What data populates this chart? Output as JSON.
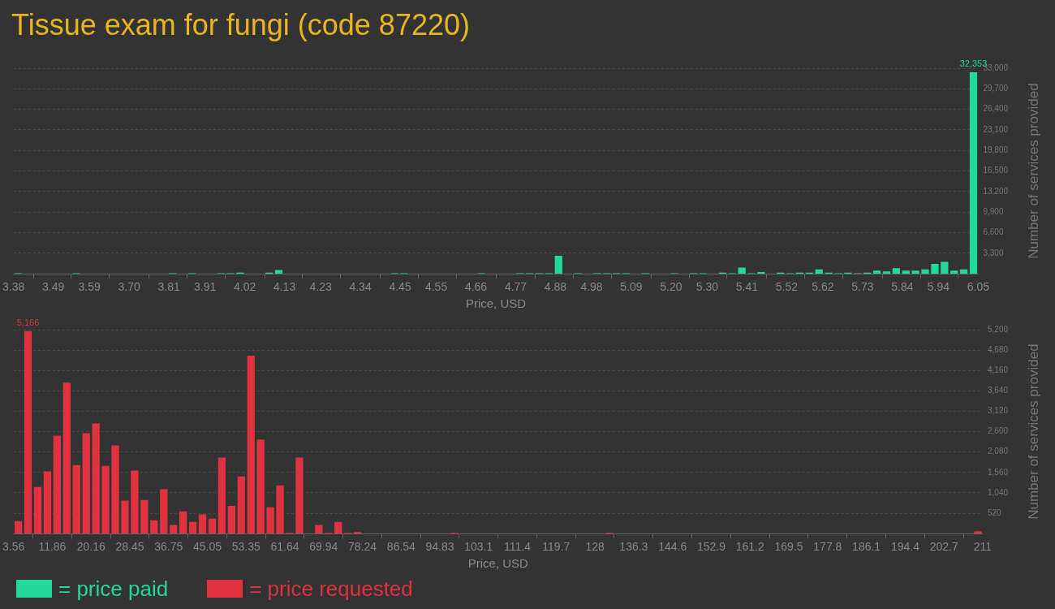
{
  "chart_data": [
    {
      "type": "histogram",
      "title": "Tissue exam for fungi (code 87220)",
      "xlabel": "Price, USD",
      "ylabel": "Number of services provided",
      "grid": "y",
      "legend": "bottom left",
      "bins": [
        3.38,
        3.4067,
        3.4334,
        3.4601,
        3.4868,
        3.5135,
        3.5402,
        3.5669,
        3.5936,
        3.6203,
        3.647,
        3.6737,
        3.7004,
        3.7271,
        3.7538,
        3.7805,
        3.8072,
        3.8339,
        3.8606,
        3.8873,
        3.914,
        3.9407,
        3.9674,
        3.9941,
        4.0208,
        4.0475,
        4.0742,
        4.1009,
        4.1276,
        4.1543,
        4.181,
        4.2077,
        4.2344,
        4.2611,
        4.2878,
        4.3145,
        4.3412,
        4.3679,
        4.3946,
        4.4213,
        4.448,
        4.4747,
        4.5014,
        4.5281,
        4.5548,
        4.5815,
        4.6082,
        4.6349,
        4.6616,
        4.6883,
        4.715,
        4.7417,
        4.7684,
        4.7951,
        4.8218,
        4.8485,
        4.8752,
        4.9019,
        4.9286,
        4.9553,
        4.982,
        5.0087,
        5.0354,
        5.0621,
        5.0888,
        5.1155,
        5.1422,
        5.1689,
        5.1956,
        5.2223,
        5.249,
        5.2757,
        5.3024,
        5.3291,
        5.3558,
        5.3825,
        5.4092,
        5.4359,
        5.4626,
        5.4893,
        5.516,
        5.5427,
        5.5694,
        5.5961,
        5.6228,
        5.6495,
        5.6762,
        5.7029,
        5.7296,
        5.7563,
        5.783,
        5.8097,
        5.8364,
        5.8631,
        5.8898,
        5.9165,
        5.9432,
        5.9699,
        5.9966,
        6.0233,
        6.05
      ],
      "series": [
        {
          "name": "= price paid",
          "color": "#22d89b",
          "values": [
            100,
            0,
            0,
            0,
            0,
            0,
            100,
            0,
            0,
            0,
            0,
            0,
            0,
            0,
            0,
            0,
            100,
            0,
            100,
            0,
            0,
            100,
            100,
            200,
            0,
            0,
            200,
            600,
            0,
            0,
            0,
            0,
            0,
            0,
            0,
            0,
            0,
            0,
            0,
            100,
            100,
            0,
            0,
            0,
            0,
            0,
            0,
            0,
            100,
            0,
            0,
            0,
            100,
            100,
            100,
            100,
            2900,
            0,
            100,
            0,
            100,
            100,
            100,
            100,
            0,
            100,
            0,
            0,
            100,
            0,
            100,
            100,
            0,
            200,
            100,
            1000,
            100,
            300,
            0,
            200,
            100,
            200,
            200,
            700,
            200,
            100,
            200,
            100,
            200,
            500,
            400,
            900,
            500,
            500,
            700,
            1600,
            1900,
            500,
            700,
            32353
          ],
          "value_labels": [
            null,
            null,
            null,
            null,
            null,
            null,
            null,
            null,
            null,
            null,
            null,
            null,
            null,
            null,
            null,
            null,
            null,
            null,
            null,
            null,
            null,
            null,
            null,
            null,
            null,
            null,
            null,
            null,
            null,
            null,
            null,
            null,
            null,
            null,
            null,
            null,
            null,
            null,
            null,
            null,
            null,
            null,
            null,
            null,
            null,
            null,
            null,
            null,
            null,
            null,
            null,
            null,
            null,
            null,
            null,
            null,
            null,
            null,
            null,
            null,
            null,
            null,
            null,
            null,
            null,
            null,
            null,
            null,
            null,
            null,
            null,
            null,
            null,
            null,
            null,
            null,
            null,
            null,
            null,
            null,
            null,
            null,
            null,
            null,
            null,
            null,
            null,
            null,
            null,
            null,
            null,
            null,
            null,
            null,
            null,
            null,
            null,
            null,
            null,
            "32,353"
          ]
        }
      ],
      "xlim": [
        3.38,
        6.05
      ],
      "xticks": [
        {
          "value": 3.38,
          "label": "3.38"
        },
        {
          "value": 3.49,
          "label": "3.49"
        },
        {
          "value": 3.59,
          "label": "3.59"
        },
        {
          "value": 3.7,
          "label": "3.70"
        },
        {
          "value": 3.81,
          "label": "3.81"
        },
        {
          "value": 3.91,
          "label": "3.91"
        },
        {
          "value": 4.02,
          "label": "4.02"
        },
        {
          "value": 4.13,
          "label": "4.13"
        },
        {
          "value": 4.23,
          "label": "4.23"
        },
        {
          "value": 4.34,
          "label": "4.34"
        },
        {
          "value": 4.45,
          "label": "4.45"
        },
        {
          "value": 4.55,
          "label": "4.55"
        },
        {
          "value": 4.66,
          "label": "4.66"
        },
        {
          "value": 4.77,
          "label": "4.77"
        },
        {
          "value": 4.88,
          "label": "4.88"
        },
        {
          "value": 4.98,
          "label": "4.98"
        },
        {
          "value": 5.09,
          "label": "5.09"
        },
        {
          "value": 5.2,
          "label": "5.20"
        },
        {
          "value": 5.3,
          "label": "5.30"
        },
        {
          "value": 5.41,
          "label": "5.41"
        },
        {
          "value": 5.52,
          "label": "5.52"
        },
        {
          "value": 5.62,
          "label": "5.62"
        },
        {
          "value": 5.73,
          "label": "5.73"
        },
        {
          "value": 5.84,
          "label": "5.84"
        },
        {
          "value": 5.94,
          "label": "5.94"
        },
        {
          "value": 6.05,
          "label": "6.05"
        }
      ],
      "ylim": [
        0,
        33000
      ],
      "yticks": [
        {
          "value": 3300,
          "label": "3,300"
        },
        {
          "value": 6600,
          "label": "6,600"
        },
        {
          "value": 9900,
          "label": "9,900"
        },
        {
          "value": 13200,
          "label": "13,200"
        },
        {
          "value": 16500,
          "label": "16,500"
        },
        {
          "value": 19800,
          "label": "19,800"
        },
        {
          "value": 23100,
          "label": "23,100"
        },
        {
          "value": 26400,
          "label": "26,400"
        },
        {
          "value": 29700,
          "label": "29,700"
        },
        {
          "value": 33000,
          "label": "33,000"
        }
      ]
    },
    {
      "type": "histogram",
      "xlabel": "Price, USD",
      "ylabel": "Number of services provided",
      "grid": "y",
      "legend": "bottom left",
      "bins": [
        3.56,
        5.63,
        7.71,
        9.78,
        11.86,
        13.93,
        16.01,
        18.08,
        20.16,
        22.23,
        24.3,
        26.38,
        28.45,
        30.53,
        32.6,
        34.68,
        36.75,
        38.82,
        40.9,
        42.97,
        45.05,
        47.12,
        49.2,
        51.27,
        53.35,
        55.42,
        57.49,
        59.57,
        61.64,
        63.72,
        65.79,
        67.87,
        69.94,
        72.02,
        74.09,
        76.16,
        78.24,
        80.31,
        82.39,
        84.46,
        86.54,
        88.61,
        90.68,
        92.76,
        94.83,
        96.91,
        98.98,
        101.06,
        103.13,
        105.21,
        107.28,
        109.35,
        111.43,
        113.5,
        115.58,
        117.65,
        119.73,
        121.8,
        123.88,
        125.95,
        128.02,
        130.1,
        132.17,
        134.25,
        136.32,
        138.4,
        140.47,
        142.54,
        144.62,
        146.69,
        148.77,
        150.84,
        152.92,
        154.99,
        157.07,
        159.14,
        161.21,
        163.29,
        165.36,
        167.44,
        169.51,
        171.59,
        173.66,
        175.74,
        177.81,
        179.88,
        181.96,
        184.03,
        186.11,
        188.18,
        190.26,
        192.33,
        194.4,
        196.48,
        198.55,
        200.63,
        202.7,
        204.78,
        206.85,
        208.93,
        211
      ],
      "series": [
        {
          "name": "= price requested",
          "color": "#e0323f",
          "values": [
            320,
            5166,
            1190,
            1590,
            2500,
            3850,
            1750,
            2560,
            2810,
            1730,
            2250,
            840,
            1610,
            860,
            340,
            1130,
            220,
            570,
            300,
            490,
            380,
            1940,
            710,
            1460,
            4540,
            2400,
            670,
            1230,
            20,
            1940,
            0,
            220,
            20,
            300,
            20,
            40,
            0,
            0,
            0,
            0,
            0,
            0,
            0,
            0,
            0,
            20,
            0,
            0,
            0,
            0,
            0,
            0,
            0,
            0,
            0,
            0,
            0,
            0,
            0,
            0,
            0,
            20,
            0,
            0,
            0,
            0,
            0,
            0,
            0,
            0,
            0,
            0,
            0,
            0,
            0,
            0,
            0,
            0,
            0,
            0,
            0,
            0,
            0,
            0,
            0,
            0,
            0,
            0,
            0,
            0,
            0,
            0,
            0,
            0,
            0,
            0,
            0,
            0,
            0,
            60
          ],
          "value_labels": [
            null,
            "5,166",
            null,
            null,
            null,
            null,
            null,
            null,
            null,
            null,
            null,
            null,
            null,
            null,
            null,
            null,
            null,
            null,
            null,
            null,
            null,
            null,
            null,
            null,
            null,
            null,
            null,
            null,
            null,
            null,
            null,
            null,
            null,
            null,
            null,
            null,
            null,
            null,
            null,
            null,
            null,
            null,
            null,
            null,
            null,
            null,
            null,
            null,
            null,
            null,
            null,
            null,
            null,
            null,
            null,
            null,
            null,
            null,
            null,
            null,
            null,
            null,
            null,
            null,
            null,
            null,
            null,
            null,
            null,
            null,
            null,
            null,
            null,
            null,
            null,
            null,
            null,
            null,
            null,
            null,
            null,
            null,
            null,
            null,
            null,
            null,
            null,
            null,
            null,
            null,
            null,
            null,
            null,
            null,
            null,
            null,
            null,
            null,
            null,
            null
          ]
        }
      ],
      "xlim": [
        3.56,
        211
      ],
      "xticks": [
        {
          "value": 3.56,
          "label": "3.56"
        },
        {
          "value": 11.86,
          "label": "11.86"
        },
        {
          "value": 20.16,
          "label": "20.16"
        },
        {
          "value": 28.45,
          "label": "28.45"
        },
        {
          "value": 36.75,
          "label": "36.75"
        },
        {
          "value": 45.05,
          "label": "45.05"
        },
        {
          "value": 53.35,
          "label": "53.35"
        },
        {
          "value": 61.64,
          "label": "61.64"
        },
        {
          "value": 69.94,
          "label": "69.94"
        },
        {
          "value": 78.24,
          "label": "78.24"
        },
        {
          "value": 86.54,
          "label": "86.54"
        },
        {
          "value": 94.83,
          "label": "94.83"
        },
        {
          "value": 103.1,
          "label": "103.1"
        },
        {
          "value": 111.4,
          "label": "111.4"
        },
        {
          "value": 119.7,
          "label": "119.7"
        },
        {
          "value": 128,
          "label": "128"
        },
        {
          "value": 136.3,
          "label": "136.3"
        },
        {
          "value": 144.6,
          "label": "144.6"
        },
        {
          "value": 152.9,
          "label": "152.9"
        },
        {
          "value": 161.2,
          "label": "161.2"
        },
        {
          "value": 169.5,
          "label": "169.5"
        },
        {
          "value": 177.8,
          "label": "177.8"
        },
        {
          "value": 186.1,
          "label": "186.1"
        },
        {
          "value": 194.4,
          "label": "194.4"
        },
        {
          "value": 202.7,
          "label": "202.7"
        },
        {
          "value": 211,
          "label": "211"
        }
      ],
      "ylim": [
        0,
        5200
      ],
      "yticks": [
        {
          "value": 520,
          "label": "520"
        },
        {
          "value": 1040,
          "label": "1,040"
        },
        {
          "value": 1560,
          "label": "1,560"
        },
        {
          "value": 2080,
          "label": "2,080"
        },
        {
          "value": 2600,
          "label": "2,600"
        },
        {
          "value": 3120,
          "label": "3,120"
        },
        {
          "value": 3640,
          "label": "3,640"
        },
        {
          "value": 4160,
          "label": "4,160"
        },
        {
          "value": 4680,
          "label": "4,680"
        },
        {
          "value": 5200,
          "label": "5,200"
        }
      ]
    }
  ]
}
